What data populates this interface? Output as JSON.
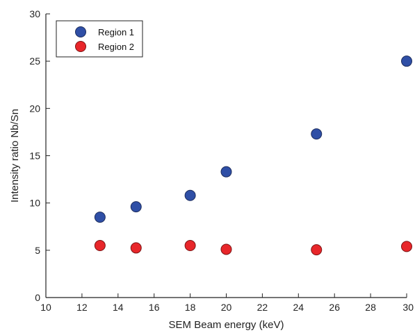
{
  "chart_data": {
    "type": "scatter",
    "title": "",
    "xlabel": "SEM Beam energy (keV)",
    "ylabel": "Intensity ratio Nb/Sn",
    "xlim": [
      10,
      30
    ],
    "ylim": [
      0,
      30
    ],
    "xticks": [
      10,
      12,
      14,
      16,
      18,
      20,
      22,
      24,
      26,
      28,
      30
    ],
    "yticks": [
      0,
      5,
      10,
      15,
      20,
      25,
      30
    ],
    "grid": false,
    "legend_position": "top-left",
    "series": [
      {
        "name": "Region 1",
        "color": "#2f4fa6",
        "x": [
          13,
          15,
          18,
          20,
          25,
          30
        ],
        "y": [
          8.5,
          9.6,
          10.8,
          13.3,
          17.3,
          25.0
        ]
      },
      {
        "name": "Region 2",
        "color": "#e8262a",
        "x": [
          13,
          15,
          18,
          20,
          25,
          30
        ],
        "y": [
          5.5,
          5.25,
          5.5,
          5.1,
          5.05,
          5.4
        ]
      }
    ]
  }
}
